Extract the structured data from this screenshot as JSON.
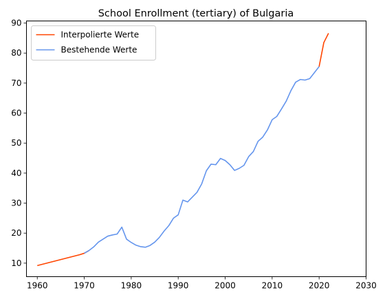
{
  "chart_data": {
    "type": "line",
    "title": "School Enrollment (tertiary) of Bulgaria",
    "xlabel": "",
    "ylabel": "",
    "xlim": [
      1957.7,
      2030
    ],
    "ylim": [
      5.5,
      90.7
    ],
    "xticks": [
      1960,
      1970,
      1980,
      1990,
      2000,
      2010,
      2020,
      2030
    ],
    "yticks": [
      10,
      20,
      30,
      40,
      50,
      60,
      70,
      80,
      90
    ],
    "grid": false,
    "legend_position": "upper-left",
    "series": [
      {
        "name": "Interpolierte Werte",
        "color": "#ff4500",
        "segments": [
          {
            "x": [
              1960,
              1961,
              1962,
              1963,
              1964,
              1965,
              1966,
              1967,
              1968,
              1969,
              1970,
              1971
            ],
            "y": [
              9.2,
              9.6,
              10.0,
              10.4,
              10.8,
              11.2,
              11.6,
              12.0,
              12.4,
              12.8,
              13.3,
              14.2
            ]
          },
          {
            "x": [
              2020,
              2021,
              2022
            ],
            "y": [
              75.5,
              83.5,
              86.6
            ]
          }
        ]
      },
      {
        "name": "Bestehende Werte",
        "color": "#6495ed",
        "segments": [
          {
            "x": [
              1970,
              1971,
              1972,
              1973,
              1974,
              1975,
              1976,
              1977,
              1978,
              1979,
              1980,
              1981,
              1982,
              1983,
              1984,
              1985,
              1986,
              1987,
              1988,
              1989,
              1990,
              1991,
              1992,
              1993,
              1994,
              1995,
              1996,
              1997,
              1998,
              1999,
              2000,
              2001,
              2002,
              2003,
              2004,
              2005,
              2006,
              2007,
              2008,
              2009,
              2010,
              2011,
              2012,
              2013,
              2014,
              2015,
              2016,
              2017,
              2018,
              2019,
              2020
            ],
            "y": [
              13.3,
              14.2,
              15.4,
              17.0,
              18.0,
              19.0,
              19.4,
              19.7,
              22.0,
              18.0,
              16.9,
              16.0,
              15.5,
              15.3,
              15.9,
              17.0,
              18.6,
              20.7,
              22.5,
              25.0,
              26.1,
              31.0,
              30.4,
              32.0,
              33.6,
              36.4,
              40.8,
              43.0,
              42.8,
              44.9,
              44.2,
              42.8,
              40.9,
              41.6,
              42.6,
              45.5,
              47.2,
              50.6,
              52.0,
              54.4,
              57.8,
              58.9,
              61.4,
              64.0,
              67.5,
              70.3,
              71.2,
              71.0,
              71.5,
              73.5,
              75.5
            ]
          }
        ]
      }
    ]
  }
}
